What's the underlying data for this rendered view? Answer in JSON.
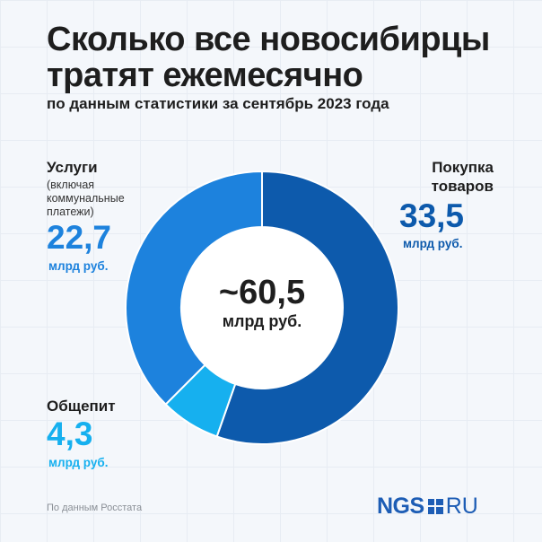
{
  "header": {
    "title": "Сколько все новосибирцы тратят ежемесячно",
    "subtitle": "по данным статистики за сентябрь 2023 года"
  },
  "chart_data": {
    "type": "pie",
    "variant": "donut",
    "title": "Сколько все новосибирцы тратят ежемесячно",
    "subtitle": "по данным статистики за сентябрь 2023 года",
    "total": {
      "value": "~60,5",
      "unit": "млрд руб."
    },
    "slices": [
      {
        "label": "Покупка товаров",
        "value": 33.5,
        "value_text": "33,5",
        "unit": "млрд руб.",
        "color": "#0d5aac"
      },
      {
        "label": "Общепит",
        "value": 4.3,
        "value_text": "4,3",
        "unit": "млрд руб.",
        "color": "#16b0ef"
      },
      {
        "label": "Услуги",
        "note": "(включая коммунальные платежи)",
        "value": 22.7,
        "value_text": "22,7",
        "unit": "млрд руб.",
        "color": "#1d82dd"
      }
    ],
    "legend": "labels placed next to slices"
  },
  "colors": {
    "text": "#1e1e1e",
    "accent_dark": "#0d5aac",
    "accent_light": "#16b0ef",
    "accent_mid": "#1d82dd",
    "brand": "#1d5db5"
  },
  "footer": {
    "source": "По данным Росстата",
    "logo_left": "NGS",
    "logo_right": "RU",
    "logo_icon": "ngs-square-icon"
  }
}
